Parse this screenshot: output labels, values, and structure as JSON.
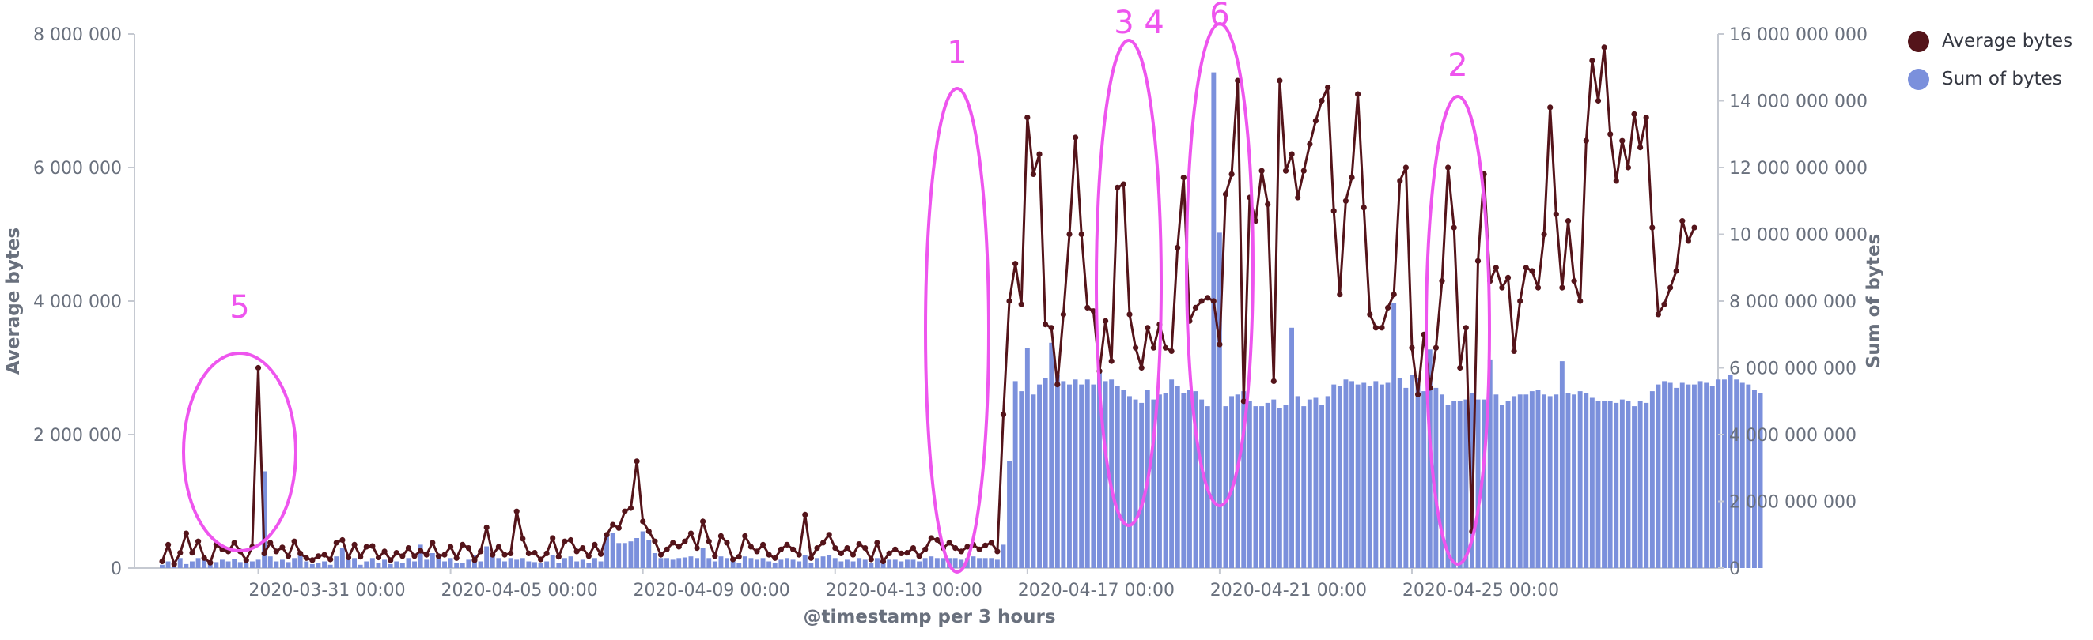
{
  "chart_data": {
    "type": "bar+line",
    "xlabel": "@timestamp per 3 hours",
    "ylabel_left": "Average bytes",
    "ylabel_right": "Sum of bytes",
    "ylim_left": [
      0,
      8000000
    ],
    "ylim_right": [
      0,
      16000000000
    ],
    "left_ticks": [
      "0",
      "2 000 000",
      "4 000 000",
      "6 000 000",
      "8 000 000"
    ],
    "right_ticks": [
      "0",
      "2 000 000 000",
      "4 000 000 000",
      "6 000 000 000",
      "8 000 000 000",
      "10 000 000 000",
      "12 000 000 000",
      "14 000 000 000",
      "16 000 000 000"
    ],
    "x_tick_labels": [
      "2020-03-31 00:00",
      "2020-04-05 00:00",
      "2020-04-09 00:00",
      "2020-04-13 00:00",
      "2020-04-17 00:00",
      "2020-04-21 00:00",
      "2020-04-25 00:00"
    ],
    "legend_position": "top-right",
    "grid": false,
    "series": [
      {
        "name": "Average bytes",
        "type": "line",
        "axis": "left",
        "color": "#54141a",
        "values": [
          100000,
          350000,
          60000,
          230000,
          520000,
          230000,
          400000,
          150000,
          80000,
          350000,
          280000,
          250000,
          380000,
          250000,
          120000,
          320000,
          3000000,
          220000,
          380000,
          250000,
          310000,
          180000,
          400000,
          220000,
          150000,
          120000,
          180000,
          200000,
          130000,
          380000,
          420000,
          160000,
          350000,
          170000,
          320000,
          330000,
          160000,
          250000,
          120000,
          230000,
          180000,
          300000,
          180000,
          260000,
          200000,
          380000,
          180000,
          200000,
          320000,
          150000,
          350000,
          300000,
          120000,
          250000,
          610000,
          200000,
          320000,
          200000,
          220000,
          850000,
          440000,
          220000,
          230000,
          130000,
          220000,
          450000,
          170000,
          400000,
          420000,
          250000,
          300000,
          180000,
          350000,
          210000,
          500000,
          650000,
          600000,
          850000,
          900000,
          1600000,
          700000,
          550000,
          400000,
          200000,
          280000,
          380000,
          320000,
          400000,
          520000,
          300000,
          700000,
          400000,
          180000,
          480000,
          380000,
          130000,
          170000,
          480000,
          320000,
          250000,
          350000,
          200000,
          150000,
          280000,
          350000,
          280000,
          200000,
          800000,
          150000,
          300000,
          380000,
          500000,
          300000,
          220000,
          300000,
          200000,
          360000,
          300000,
          130000,
          380000,
          100000,
          220000,
          280000,
          220000,
          230000,
          300000,
          180000,
          280000,
          450000,
          420000,
          300000,
          380000,
          300000,
          250000,
          320000,
          350000,
          280000,
          340000,
          380000,
          250000,
          2300000,
          4000000,
          4560000,
          3950000,
          6750000,
          5900000,
          6200000,
          3650000,
          3600000,
          2750000,
          3800000,
          5000000,
          6450000,
          5000000,
          3900000,
          3850000,
          2950000,
          3700000,
          3100000,
          5700000,
          5750000,
          3800000,
          3300000,
          3000000,
          3600000,
          3300000,
          3650000,
          3300000,
          3250000,
          4800000,
          5850000,
          3700000,
          3900000,
          4000000,
          4050000,
          4000000,
          3350000,
          5600000,
          5900000,
          7300000,
          2500000,
          5550000,
          5200000,
          5950000,
          5450000,
          2800000,
          7300000,
          5950000,
          6200000,
          5550000,
          5950000,
          6350000,
          6700000,
          7000000,
          7200000,
          5350000,
          4100000,
          5500000,
          5850000,
          7100000,
          5400000,
          3800000,
          3600000,
          3600000,
          3900000,
          4100000,
          5800000,
          6000000,
          3300000,
          2600000,
          3500000,
          2700000,
          3300000,
          4300000,
          6000000,
          5100000,
          3000000,
          3600000,
          550000,
          4600000,
          5900000,
          4300000,
          4500000,
          4200000,
          4350000,
          3250000,
          4000000,
          4500000,
          4450000,
          4200000,
          5000000,
          6900000,
          5300000,
          4200000,
          5200000,
          4300000,
          4000000,
          6400000,
          7600000,
          7000000,
          7800000,
          6500000,
          5800000,
          6400000,
          6000000,
          6800000,
          6300000,
          6750000,
          5100000,
          3800000,
          3950000,
          4200000,
          4450000,
          5200000,
          4900000,
          5100000
        ]
      },
      {
        "name": "Sum of bytes",
        "type": "bar",
        "axis": "right",
        "color": "#7b90dc",
        "values": [
          100000000,
          200000000,
          150000000,
          300000000,
          120000000,
          200000000,
          300000000,
          250000000,
          150000000,
          180000000,
          250000000,
          200000000,
          280000000,
          180000000,
          150000000,
          200000000,
          250000000,
          2900000000,
          350000000,
          200000000,
          250000000,
          180000000,
          300000000,
          450000000,
          200000000,
          120000000,
          150000000,
          200000000,
          100000000,
          350000000,
          600000000,
          250000000,
          300000000,
          100000000,
          200000000,
          300000000,
          150000000,
          250000000,
          120000000,
          200000000,
          150000000,
          300000000,
          200000000,
          700000000,
          250000000,
          450000000,
          300000000,
          200000000,
          300000000,
          150000000,
          150000000,
          250000000,
          400000000,
          200000000,
          650000000,
          350000000,
          300000000,
          200000000,
          300000000,
          250000000,
          300000000,
          200000000,
          180000000,
          150000000,
          200000000,
          400000000,
          150000000,
          300000000,
          350000000,
          200000000,
          250000000,
          150000000,
          300000000,
          200000000,
          1000000000,
          1050000000,
          750000000,
          750000000,
          800000000,
          900000000,
          1100000000,
          850000000,
          450000000,
          300000000,
          300000000,
          250000000,
          300000000,
          320000000,
          350000000,
          300000000,
          600000000,
          300000000,
          200000000,
          350000000,
          300000000,
          200000000,
          150000000,
          350000000,
          300000000,
          250000000,
          300000000,
          200000000,
          150000000,
          250000000,
          300000000,
          250000000,
          200000000,
          400000000,
          150000000,
          300000000,
          350000000,
          400000000,
          300000000,
          200000000,
          250000000,
          200000000,
          300000000,
          250000000,
          150000000,
          300000000,
          200000000,
          250000000,
          250000000,
          200000000,
          250000000,
          250000000,
          200000000,
          300000000,
          350000000,
          300000000,
          300000000,
          300000000,
          300000000,
          250000000,
          300000000,
          350000000,
          300000000,
          300000000,
          300000000,
          250000000,
          700000000,
          3200000000,
          5600000000,
          5300000000,
          6600000000,
          5200000000,
          5500000000,
          5700000000,
          6750000000,
          5800000000,
          5600000000,
          5500000000,
          5650000000,
          5500000000,
          5650000000,
          5500000000,
          5850000000,
          5600000000,
          5650000000,
          5450000000,
          5350000000,
          5150000000,
          5050000000,
          4950000000,
          5350000000,
          5050000000,
          5200000000,
          5250000000,
          5650000000,
          5450000000,
          5250000000,
          5350000000,
          5300000000,
          5050000000,
          4850000000,
          14850000000,
          10050000000,
          4850000000,
          5150000000,
          5200000000,
          5300000000,
          5000000000,
          4850000000,
          4850000000,
          4950000000,
          5050000000,
          4800000000,
          4900000000,
          7200000000,
          5150000000,
          4850000000,
          5050000000,
          5100000000,
          4900000000,
          5150000000,
          5500000000,
          5450000000,
          5650000000,
          5600000000,
          5500000000,
          5550000000,
          5450000000,
          5600000000,
          5500000000,
          5550000000,
          7950000000,
          5700000000,
          5400000000,
          5800000000,
          5700000000,
          5300000000,
          6550000000,
          5400000000,
          5200000000,
          4900000000,
          5000000000,
          5000000000,
          5050000000,
          5250000000,
          5050000000,
          5050000000,
          6250000000,
          5200000000,
          4900000000,
          5000000000,
          5150000000,
          5200000000,
          5200000000,
          5300000000,
          5350000000,
          5200000000,
          5150000000,
          5200000000,
          6200000000,
          5250000000,
          5200000000,
          5300000000,
          5250000000,
          5100000000,
          5000000000,
          5000000000,
          5000000000,
          4950000000,
          5050000000,
          5000000000,
          4850000000,
          5000000000,
          4950000000,
          5300000000,
          5500000000,
          5600000000,
          5550000000,
          5400000000,
          5550000000,
          5500000000,
          5500000000,
          5600000000,
          5550000000,
          5450000000,
          5650000000,
          5650000000,
          5800000000,
          5650000000,
          5550000000,
          5500000000,
          5350000000,
          5250000000
        ]
      }
    ],
    "annotations": [
      {
        "label": "5"
      },
      {
        "label": "1"
      },
      {
        "label": "3 4"
      },
      {
        "label": "6"
      },
      {
        "label": "2"
      }
    ]
  }
}
